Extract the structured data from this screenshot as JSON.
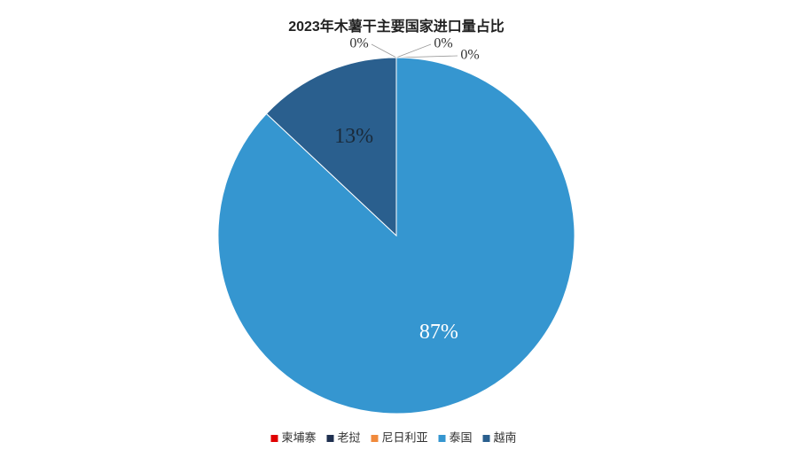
{
  "chart_data": {
    "type": "pie",
    "title": "2023年木薯干主要国家进口量占比",
    "categories": [
      "柬埔寨",
      "老挝",
      "尼日利亚",
      "泰国",
      "越南"
    ],
    "values": [
      0,
      0,
      0,
      87,
      13
    ],
    "value_labels": [
      "0%",
      "0%",
      "0%",
      "87%",
      "13%"
    ],
    "colors": [
      "#e00000",
      "#1f3050",
      "#f08a3c",
      "#3596d0",
      "#2a5f8e"
    ],
    "legend": "bottom"
  }
}
